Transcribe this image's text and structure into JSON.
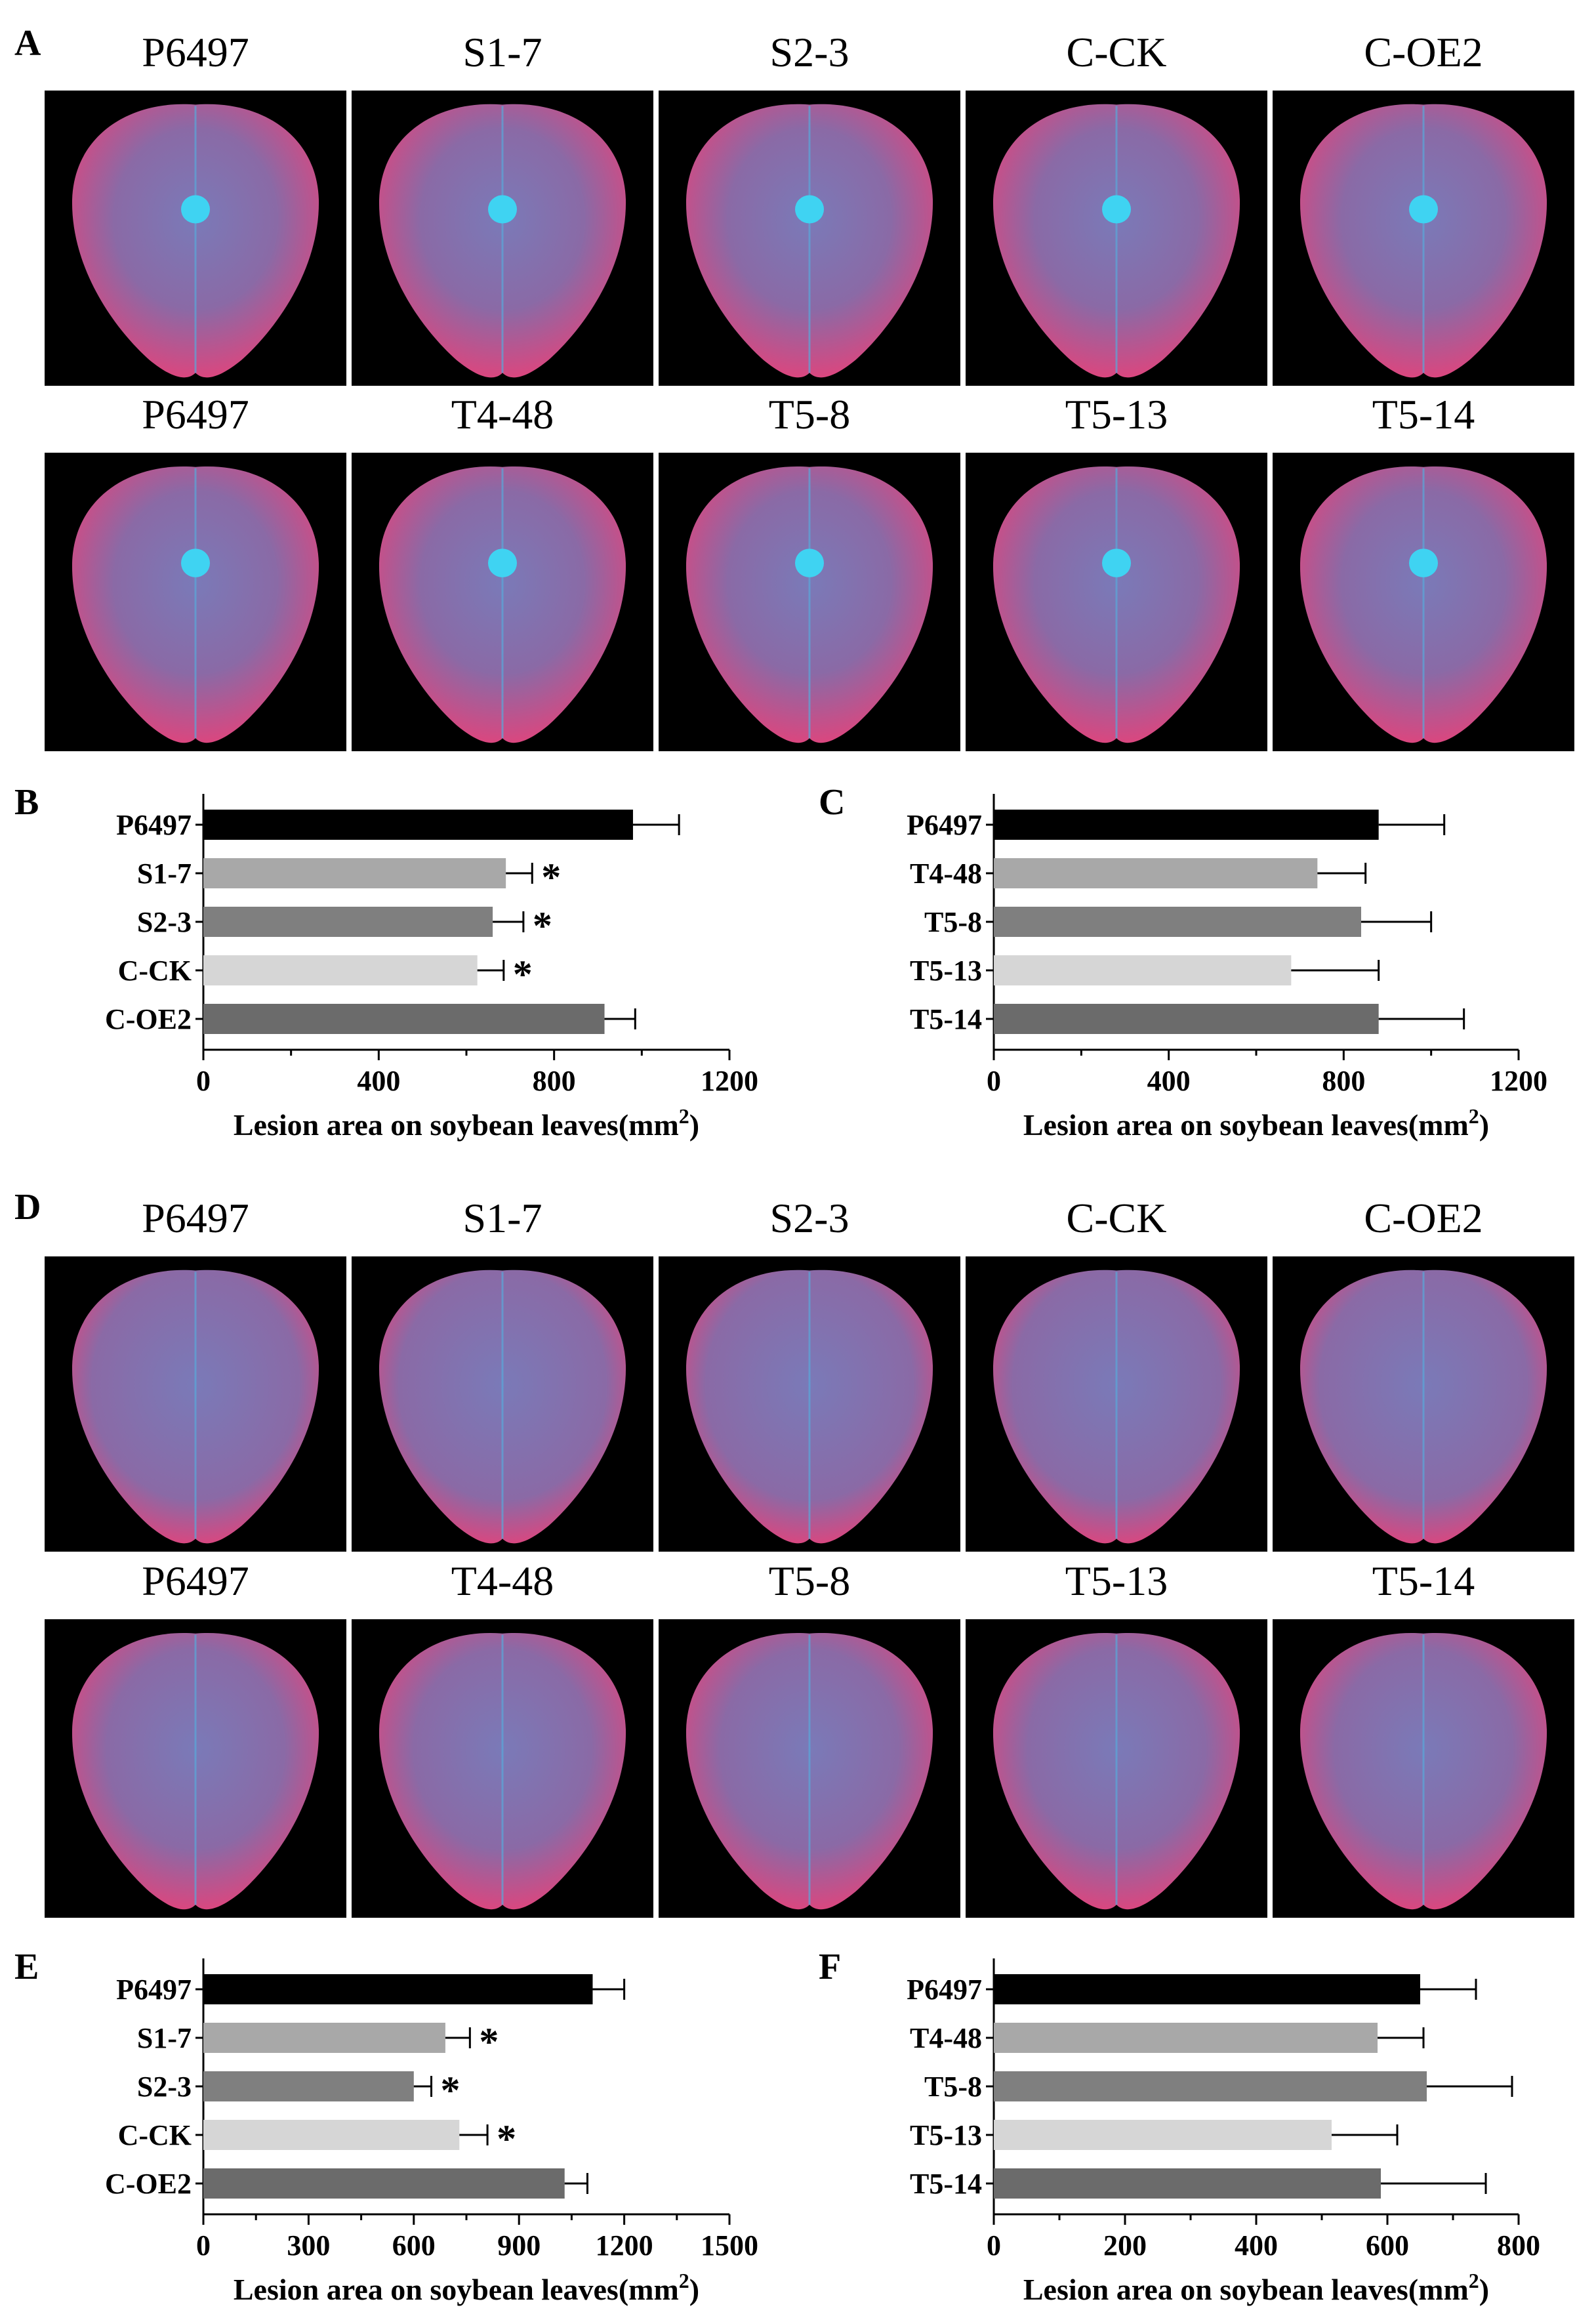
{
  "panel_letters": {
    "a": "A",
    "b": "B",
    "c": "C",
    "d": "D",
    "e": "E",
    "f": "F"
  },
  "image_rows": [
    {
      "labels": [
        "P6497",
        "S1-7",
        "S2-3",
        "C-CK",
        "C-OE2"
      ]
    },
    {
      "labels": [
        "P6497",
        "T4-48",
        "T5-8",
        "T5-13",
        "T5-14"
      ]
    },
    {
      "labels": [
        "P6497",
        "S1-7",
        "S2-3",
        "C-CK",
        "C-OE2"
      ]
    },
    {
      "labels": [
        "P6497",
        "T4-48",
        "T5-8",
        "T5-13",
        "T5-14"
      ]
    }
  ],
  "colors": {
    "bars": [
      "#000000",
      "#a8a8a8",
      "#7f7f7f",
      "#d6d6d6",
      "#6b6b6b"
    ],
    "leaf_pink": "#e0447c",
    "leaf_blue": "#7a7ab8",
    "inoculum": "#3fd3f2"
  },
  "chart_data": [
    {
      "panel": "B",
      "type": "bar",
      "orientation": "horizontal",
      "categories": [
        "P6497",
        "S1-7",
        "S2-3",
        "C-CK",
        "C-OE2"
      ],
      "values": [
        980,
        690,
        660,
        625,
        915
      ],
      "errors": [
        105,
        60,
        70,
        60,
        70
      ],
      "significance": [
        "",
        "*",
        "*",
        "*",
        ""
      ],
      "xlim": [
        0,
        1200
      ],
      "xticks": [
        "0",
        "400",
        "800",
        "1200"
      ],
      "xlabel": "Lesion area on soybean leaves(mm",
      "xlabel_sup": "2",
      "xlabel_end": ")"
    },
    {
      "panel": "C",
      "type": "bar",
      "orientation": "horizontal",
      "categories": [
        "P6497",
        "T4-48",
        "T5-8",
        "T5-13",
        "T5-14"
      ],
      "values": [
        880,
        740,
        840,
        680,
        880
      ],
      "errors": [
        150,
        110,
        160,
        200,
        195
      ],
      "significance": [
        "",
        "",
        "",
        "",
        ""
      ],
      "xlim": [
        0,
        1200
      ],
      "xticks": [
        "0",
        "400",
        "800",
        "1200"
      ],
      "xlabel": "Lesion area on soybean leaves(mm",
      "xlabel_sup": "2",
      "xlabel_end": ")"
    },
    {
      "panel": "E",
      "type": "bar",
      "orientation": "horizontal",
      "categories": [
        "P6497",
        "S1-7",
        "S2-3",
        "C-CK",
        "C-OE2"
      ],
      "values": [
        1110,
        690,
        600,
        730,
        1030
      ],
      "errors": [
        90,
        70,
        50,
        80,
        65
      ],
      "significance": [
        "",
        "*",
        "*",
        "*",
        ""
      ],
      "xlim": [
        0,
        1500
      ],
      "xticks": [
        "0",
        "300",
        "600",
        "900",
        "1200",
        "1500"
      ],
      "xlabel": "Lesion area on soybean leaves(mm",
      "xlabel_sup": "2",
      "xlabel_end": ")"
    },
    {
      "panel": "F",
      "type": "bar",
      "orientation": "horizontal",
      "categories": [
        "P6497",
        "T4-48",
        "T5-8",
        "T5-13",
        "T5-14"
      ],
      "values": [
        650,
        585,
        660,
        515,
        590
      ],
      "errors": [
        85,
        70,
        130,
        100,
        160
      ],
      "significance": [
        "",
        "",
        "",
        "",
        ""
      ],
      "xlim": [
        0,
        800
      ],
      "xticks": [
        "0",
        "200",
        "400",
        "600",
        "800"
      ],
      "xlabel": "Lesion area on soybean leaves(mm",
      "xlabel_sup": "2",
      "xlabel_end": ")"
    }
  ]
}
